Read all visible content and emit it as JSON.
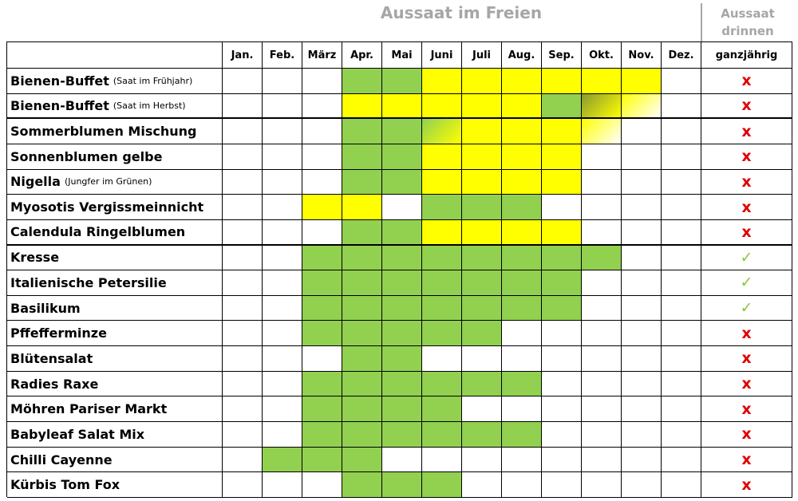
{
  "header": {
    "title": "Aussaat im Freien",
    "indoor_title": [
      "Aussaat",
      "drinnen"
    ],
    "months": [
      "Jan.",
      "Feb.",
      "März",
      "Apr.",
      "Mai",
      "Juni",
      "Juli",
      "Aug.",
      "Sep.",
      "Okt.",
      "Nov.",
      "Dez."
    ],
    "indoor_column": "ganzjährig"
  },
  "table": {
    "separators_after_rows": [
      1,
      6
    ],
    "rows": [
      {
        "name": "Bienen-Buffet",
        "note": "(Saat im Frühjahr)",
        "cells": [
          null,
          null,
          null,
          "#92d050",
          "#92d050",
          "#ffff00",
          "#ffff00",
          "#ffff00",
          "#ffff00",
          "#ffff00",
          "#ffff00",
          null
        ],
        "indoor": {
          "text": "x",
          "color": "#e00000"
        }
      },
      {
        "name": "Bienen-Buffet",
        "note": "(Saat im Herbst)",
        "cells": [
          null,
          null,
          null,
          "#ffff00",
          "#ffff00",
          "#ffff00",
          "#ffff00",
          "#ffff00",
          "#92d050",
          [
            "#8a9a30",
            "#ffff00"
          ],
          [
            "#ffff00",
            "#ffffff"
          ],
          null
        ],
        "indoor": {
          "text": "x",
          "color": "#e00000"
        }
      },
      {
        "name": "Sommerblumen Mischung",
        "cells": [
          null,
          null,
          null,
          "#92d050",
          "#92d050",
          [
            "#92d050",
            "#ffff00"
          ],
          "#ffff00",
          "#ffff00",
          "#ffff00",
          [
            "#ffff00",
            "#ffffff"
          ],
          null,
          null
        ],
        "indoor": {
          "text": "x",
          "color": "#e00000"
        }
      },
      {
        "name": "Sonnenblumen gelbe",
        "cells": [
          null,
          null,
          null,
          "#92d050",
          "#92d050",
          "#ffff00",
          "#ffff00",
          "#ffff00",
          "#ffff00",
          null,
          null,
          null
        ],
        "indoor": {
          "text": "x",
          "color": "#e00000"
        }
      },
      {
        "name": "Nigella",
        "note": "(Jungfer im Grünen)",
        "cells": [
          null,
          null,
          null,
          "#92d050",
          "#92d050",
          "#ffff00",
          "#ffff00",
          "#ffff00",
          "#ffff00",
          null,
          null,
          null
        ],
        "indoor": {
          "text": "x",
          "color": "#e00000"
        }
      },
      {
        "name": "Myosotis Vergissmeinnicht",
        "cells": [
          null,
          null,
          "#ffff00",
          "#ffff00",
          null,
          "#92d050",
          "#92d050",
          "#92d050",
          null,
          null,
          null,
          null
        ],
        "indoor": {
          "text": "x",
          "color": "#e00000"
        }
      },
      {
        "name": "Calendula Ringelblumen",
        "cells": [
          null,
          null,
          null,
          "#92d050",
          "#92d050",
          "#ffff00",
          "#ffff00",
          "#ffff00",
          "#ffff00",
          null,
          null,
          null
        ],
        "indoor": {
          "text": "x",
          "color": "#e00000"
        }
      },
      {
        "name": "Kresse",
        "cells": [
          null,
          null,
          "#92d050",
          "#92d050",
          "#92d050",
          "#92d050",
          "#92d050",
          "#92d050",
          "#92d050",
          "#92d050",
          null,
          null
        ],
        "indoor": {
          "text": "✓",
          "color": "#8cc63f"
        }
      },
      {
        "name": "Italienische Petersilie",
        "cells": [
          null,
          null,
          "#92d050",
          "#92d050",
          "#92d050",
          "#92d050",
          "#92d050",
          "#92d050",
          "#92d050",
          null,
          null,
          null
        ],
        "indoor": {
          "text": "✓",
          "color": "#8cc63f"
        }
      },
      {
        "name": "Basilikum",
        "cells": [
          null,
          null,
          "#92d050",
          "#92d050",
          "#92d050",
          "#92d050",
          "#92d050",
          "#92d050",
          "#92d050",
          null,
          null,
          null
        ],
        "indoor": {
          "text": "✓",
          "color": "#8cc63f"
        }
      },
      {
        "name": "Pffefferminze",
        "cells": [
          null,
          null,
          "#92d050",
          "#92d050",
          "#92d050",
          "#92d050",
          "#92d050",
          null,
          null,
          null,
          null,
          null
        ],
        "indoor": {
          "text": "x",
          "color": "#e00000"
        }
      },
      {
        "name": "Blütensalat",
        "cells": [
          null,
          null,
          null,
          "#92d050",
          "#92d050",
          null,
          null,
          null,
          null,
          null,
          null,
          null
        ],
        "indoor": {
          "text": "x",
          "color": "#e00000"
        }
      },
      {
        "name": "Radies Raxe",
        "cells": [
          null,
          null,
          "#92d050",
          "#92d050",
          "#92d050",
          "#92d050",
          "#92d050",
          "#92d050",
          null,
          null,
          null,
          null
        ],
        "indoor": {
          "text": "x",
          "color": "#e00000"
        }
      },
      {
        "name": "Möhren Pariser Markt",
        "cells": [
          null,
          null,
          "#92d050",
          "#92d050",
          "#92d050",
          "#92d050",
          null,
          null,
          null,
          null,
          null,
          null
        ],
        "indoor": {
          "text": "x",
          "color": "#e00000"
        }
      },
      {
        "name": "Babyleaf Salat Mix",
        "cells": [
          null,
          null,
          "#92d050",
          "#92d050",
          "#92d050",
          "#92d050",
          "#92d050",
          "#92d050",
          null,
          null,
          null,
          null
        ],
        "indoor": {
          "text": "x",
          "color": "#e00000"
        }
      },
      {
        "name": "Chilli Cayenne",
        "cells": [
          null,
          "#92d050",
          "#92d050",
          "#92d050",
          null,
          null,
          null,
          null,
          null,
          null,
          null,
          null
        ],
        "indoor": {
          "text": "x",
          "color": "#e00000"
        }
      },
      {
        "name": "Kürbis Tom Fox",
        "cells": [
          null,
          null,
          null,
          "#92d050",
          "#92d050",
          "#92d050",
          null,
          null,
          null,
          null,
          null,
          null
        ],
        "indoor": {
          "text": "x",
          "color": "#e00000"
        }
      }
    ]
  }
}
